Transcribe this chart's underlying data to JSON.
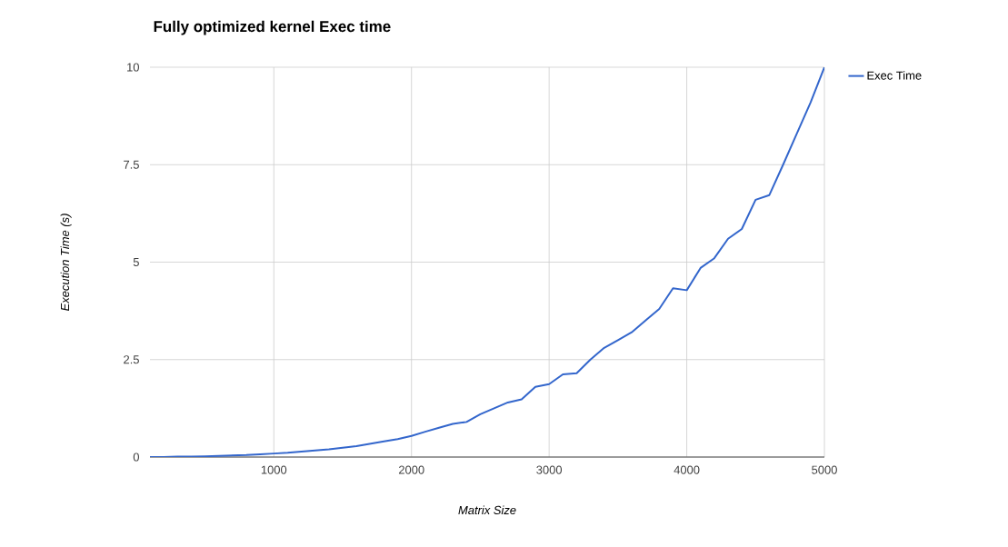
{
  "chart_data": {
    "type": "line",
    "title": "Fully optimized kernel Exec time",
    "xlabel": "Matrix Size",
    "ylabel": "Execution Time (s)",
    "x": [
      100,
      200,
      300,
      400,
      500,
      600,
      700,
      800,
      900,
      1000,
      1100,
      1200,
      1300,
      1400,
      1500,
      1600,
      1700,
      1800,
      1900,
      2000,
      2100,
      2200,
      2300,
      2400,
      2500,
      2600,
      2700,
      2800,
      2900,
      3000,
      3100,
      3200,
      3300,
      3400,
      3500,
      3600,
      3700,
      3800,
      3900,
      4000,
      4100,
      4200,
      4300,
      4400,
      4500,
      4600,
      4700,
      4800,
      4900,
      5000
    ],
    "series": [
      {
        "name": "Exec Time",
        "color": "#3366cc",
        "values": [
          0,
          0,
          0.01,
          0.01,
          0.02,
          0.03,
          0.04,
          0.05,
          0.07,
          0.09,
          0.11,
          0.14,
          0.17,
          0.2,
          0.24,
          0.28,
          0.34,
          0.4,
          0.46,
          0.54,
          0.65,
          0.75,
          0.85,
          0.9,
          1.1,
          1.25,
          1.4,
          1.48,
          1.8,
          1.87,
          2.12,
          2.15,
          2.5,
          2.8,
          3.0,
          3.2,
          3.5,
          3.8,
          4.33,
          4.28,
          4.85,
          5.1,
          5.6,
          5.85,
          6.6,
          6.72,
          7.5,
          8.3,
          9.1,
          10
        ]
      }
    ],
    "xlim": [
      100,
      5000
    ],
    "ylim": [
      0,
      10
    ],
    "xticks": [
      1000,
      2000,
      3000,
      4000,
      5000
    ],
    "yticks": [
      0,
      2.5,
      5,
      7.5,
      10
    ],
    "grid": true,
    "legend": "right",
    "line_style": "solid",
    "marker": "none"
  }
}
